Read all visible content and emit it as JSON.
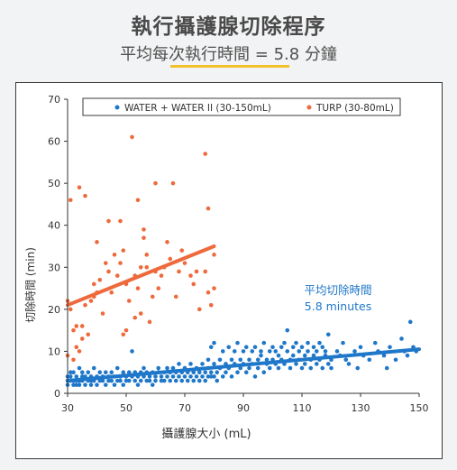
{
  "header": {
    "title": "執行攝護腺切除程序",
    "subtitle": "平均每次執行時間 = 5.8 分鐘"
  },
  "colors": {
    "water": "#1f77c9",
    "turp": "#ee6a3c",
    "accent": "#f2c02b"
  },
  "chart_data": {
    "type": "scatter",
    "title": "",
    "xlabel": "攝護腺大小 (mL)",
    "ylabel": "切除時間 (min)",
    "xlim": [
      30,
      150
    ],
    "ylim": [
      0,
      70
    ],
    "xticks": [
      30,
      50,
      70,
      90,
      110,
      130,
      150
    ],
    "yticks": [
      0,
      10,
      20,
      30,
      40,
      50,
      60,
      70
    ],
    "legend_position": "top",
    "grid": false,
    "annotation": {
      "line1": "平均切除時間",
      "line2": "5.8 minutes"
    },
    "series": [
      {
        "name": "WATER + WATER II (30-150mL)",
        "color": "#1f77c9",
        "trend": [
          [
            30,
            3
          ],
          [
            150,
            10.5
          ]
        ],
        "points": [
          [
            30,
            3
          ],
          [
            30,
            4
          ],
          [
            30,
            2
          ],
          [
            31,
            5
          ],
          [
            31,
            3
          ],
          [
            31,
            4
          ],
          [
            32,
            2
          ],
          [
            32,
            3
          ],
          [
            32,
            5
          ],
          [
            33,
            4
          ],
          [
            33,
            3
          ],
          [
            33,
            2
          ],
          [
            34,
            3
          ],
          [
            34,
            6
          ],
          [
            34,
            2
          ],
          [
            35,
            4
          ],
          [
            35,
            3
          ],
          [
            35,
            5
          ],
          [
            36,
            2
          ],
          [
            36,
            4
          ],
          [
            37,
            3
          ],
          [
            37,
            5
          ],
          [
            38,
            4
          ],
          [
            38,
            2
          ],
          [
            38,
            3
          ],
          [
            39,
            6
          ],
          [
            39,
            3
          ],
          [
            40,
            4
          ],
          [
            40,
            2
          ],
          [
            41,
            3
          ],
          [
            41,
            5
          ],
          [
            42,
            3
          ],
          [
            42,
            4
          ],
          [
            43,
            2
          ],
          [
            43,
            5
          ],
          [
            44,
            3
          ],
          [
            44,
            4
          ],
          [
            45,
            3
          ],
          [
            45,
            5
          ],
          [
            46,
            2
          ],
          [
            46,
            4
          ],
          [
            47,
            3
          ],
          [
            47,
            6
          ],
          [
            48,
            4
          ],
          [
            48,
            3
          ],
          [
            49,
            2
          ],
          [
            49,
            5
          ],
          [
            50,
            4
          ],
          [
            50,
            3
          ],
          [
            51,
            5
          ],
          [
            51,
            3
          ],
          [
            52,
            4
          ],
          [
            52,
            10
          ],
          [
            53,
            3
          ],
          [
            53,
            5
          ],
          [
            54,
            4
          ],
          [
            54,
            2
          ],
          [
            55,
            5
          ],
          [
            55,
            3
          ],
          [
            56,
            4
          ],
          [
            56,
            6
          ],
          [
            57,
            3
          ],
          [
            57,
            5
          ],
          [
            58,
            4
          ],
          [
            58,
            3
          ],
          [
            59,
            5
          ],
          [
            59,
            2
          ],
          [
            60,
            4
          ],
          [
            60,
            3
          ],
          [
            61,
            5
          ],
          [
            61,
            6
          ],
          [
            62,
            3
          ],
          [
            62,
            4
          ],
          [
            63,
            5
          ],
          [
            63,
            3
          ],
          [
            64,
            6
          ],
          [
            64,
            4
          ],
          [
            65,
            5
          ],
          [
            65,
            3
          ],
          [
            66,
            4
          ],
          [
            66,
            6
          ],
          [
            67,
            5
          ],
          [
            67,
            3
          ],
          [
            68,
            4
          ],
          [
            68,
            7
          ],
          [
            69,
            3
          ],
          [
            69,
            5
          ],
          [
            70,
            4
          ],
          [
            70,
            6
          ],
          [
            71,
            5
          ],
          [
            71,
            3
          ],
          [
            72,
            4
          ],
          [
            72,
            7
          ],
          [
            73,
            5
          ],
          [
            73,
            3
          ],
          [
            74,
            4
          ],
          [
            74,
            6
          ],
          [
            75,
            5
          ],
          [
            75,
            3
          ],
          [
            76,
            4
          ],
          [
            76,
            7
          ],
          [
            77,
            5
          ],
          [
            77,
            3
          ],
          [
            78,
            4
          ],
          [
            78,
            6
          ],
          [
            78,
            8
          ],
          [
            79,
            4
          ],
          [
            79,
            11
          ],
          [
            79,
            5
          ],
          [
            80,
            4
          ],
          [
            80,
            7
          ],
          [
            80,
            12
          ],
          [
            81,
            5
          ],
          [
            81,
            3
          ],
          [
            82,
            8
          ],
          [
            82,
            6
          ],
          [
            83,
            4
          ],
          [
            83,
            10
          ],
          [
            84,
            7
          ],
          [
            84,
            5
          ],
          [
            85,
            11
          ],
          [
            85,
            6
          ],
          [
            86,
            8
          ],
          [
            86,
            4
          ],
          [
            87,
            7
          ],
          [
            87,
            10
          ],
          [
            88,
            5
          ],
          [
            88,
            12
          ],
          [
            89,
            8
          ],
          [
            89,
            6
          ],
          [
            90,
            10
          ],
          [
            90,
            7
          ],
          [
            91,
            5
          ],
          [
            91,
            11
          ],
          [
            92,
            8
          ],
          [
            92,
            6
          ],
          [
            93,
            10
          ],
          [
            93,
            7
          ],
          [
            94,
            4
          ],
          [
            94,
            11
          ],
          [
            95,
            8
          ],
          [
            95,
            6
          ],
          [
            96,
            10
          ],
          [
            96,
            9
          ],
          [
            97,
            5
          ],
          [
            97,
            12
          ],
          [
            98,
            8
          ],
          [
            98,
            7
          ],
          [
            99,
            10
          ],
          [
            99,
            6
          ],
          [
            100,
            11
          ],
          [
            100,
            8
          ],
          [
            101,
            7
          ],
          [
            101,
            10
          ],
          [
            102,
            9
          ],
          [
            102,
            6
          ],
          [
            103,
            11
          ],
          [
            103,
            8
          ],
          [
            104,
            12
          ],
          [
            104,
            7
          ],
          [
            105,
            10
          ],
          [
            105,
            15
          ],
          [
            106,
            8
          ],
          [
            106,
            6
          ],
          [
            107,
            11
          ],
          [
            107,
            9
          ],
          [
            108,
            7
          ],
          [
            108,
            12
          ],
          [
            109,
            10
          ],
          [
            109,
            8
          ],
          [
            110,
            6
          ],
          [
            110,
            11
          ],
          [
            111,
            9
          ],
          [
            111,
            7
          ],
          [
            112,
            10
          ],
          [
            112,
            12
          ],
          [
            113,
            8
          ],
          [
            113,
            6
          ],
          [
            114,
            11
          ],
          [
            114,
            9
          ],
          [
            115,
            7
          ],
          [
            115,
            10
          ],
          [
            116,
            12
          ],
          [
            116,
            8
          ],
          [
            117,
            6
          ],
          [
            117,
            11
          ],
          [
            118,
            9
          ],
          [
            118,
            10
          ],
          [
            119,
            7
          ],
          [
            119,
            14
          ],
          [
            120,
            8
          ],
          [
            120,
            6
          ],
          [
            122,
            10
          ],
          [
            123,
            9
          ],
          [
            124,
            12
          ],
          [
            125,
            8
          ],
          [
            126,
            7
          ],
          [
            128,
            10
          ],
          [
            129,
            6
          ],
          [
            130,
            11
          ],
          [
            131,
            9
          ],
          [
            133,
            8
          ],
          [
            135,
            12
          ],
          [
            136,
            10
          ],
          [
            138,
            9
          ],
          [
            139,
            6
          ],
          [
            140,
            11
          ],
          [
            142,
            8
          ],
          [
            144,
            13
          ],
          [
            145,
            10
          ],
          [
            146,
            9
          ],
          [
            147,
            17
          ],
          [
            148,
            11
          ],
          [
            149,
            10
          ]
        ]
      },
      {
        "name": "TURP (30-80mL)",
        "color": "#ee6a3c",
        "trend": [
          [
            30,
            21
          ],
          [
            80,
            35
          ]
        ],
        "points": [
          [
            30,
            9
          ],
          [
            30,
            22
          ],
          [
            31,
            46
          ],
          [
            31,
            20
          ],
          [
            32,
            8
          ],
          [
            32,
            15
          ],
          [
            33,
            16
          ],
          [
            33,
            11
          ],
          [
            34,
            49
          ],
          [
            34,
            10
          ],
          [
            35,
            16
          ],
          [
            35,
            13
          ],
          [
            36,
            47
          ],
          [
            36,
            21
          ],
          [
            37,
            14
          ],
          [
            38,
            22
          ],
          [
            39,
            26
          ],
          [
            39,
            23
          ],
          [
            40,
            24
          ],
          [
            40,
            36
          ],
          [
            41,
            27
          ],
          [
            42,
            19
          ],
          [
            43,
            31
          ],
          [
            44,
            41
          ],
          [
            44,
            29
          ],
          [
            45,
            24
          ],
          [
            46,
            33
          ],
          [
            47,
            28
          ],
          [
            48,
            41
          ],
          [
            48,
            31
          ],
          [
            49,
            34
          ],
          [
            49,
            14
          ],
          [
            50,
            15
          ],
          [
            50,
            26
          ],
          [
            51,
            22
          ],
          [
            52,
            61
          ],
          [
            53,
            18
          ],
          [
            53,
            28
          ],
          [
            54,
            46
          ],
          [
            54,
            25
          ],
          [
            55,
            30
          ],
          [
            55,
            19
          ],
          [
            56,
            37
          ],
          [
            56,
            39
          ],
          [
            57,
            33
          ],
          [
            57,
            30
          ],
          [
            58,
            17
          ],
          [
            59,
            23
          ],
          [
            60,
            50
          ],
          [
            60,
            29
          ],
          [
            61,
            25
          ],
          [
            62,
            28
          ],
          [
            63,
            30
          ],
          [
            64,
            36
          ],
          [
            65,
            32
          ],
          [
            66,
            50
          ],
          [
            67,
            23
          ],
          [
            68,
            29
          ],
          [
            69,
            34
          ],
          [
            70,
            31
          ],
          [
            72,
            28
          ],
          [
            73,
            26
          ],
          [
            74,
            29
          ],
          [
            75,
            20
          ],
          [
            77,
            57
          ],
          [
            77,
            29
          ],
          [
            78,
            44
          ],
          [
            78,
            24
          ],
          [
            79,
            21
          ],
          [
            80,
            25
          ],
          [
            80,
            33
          ]
        ]
      }
    ]
  }
}
